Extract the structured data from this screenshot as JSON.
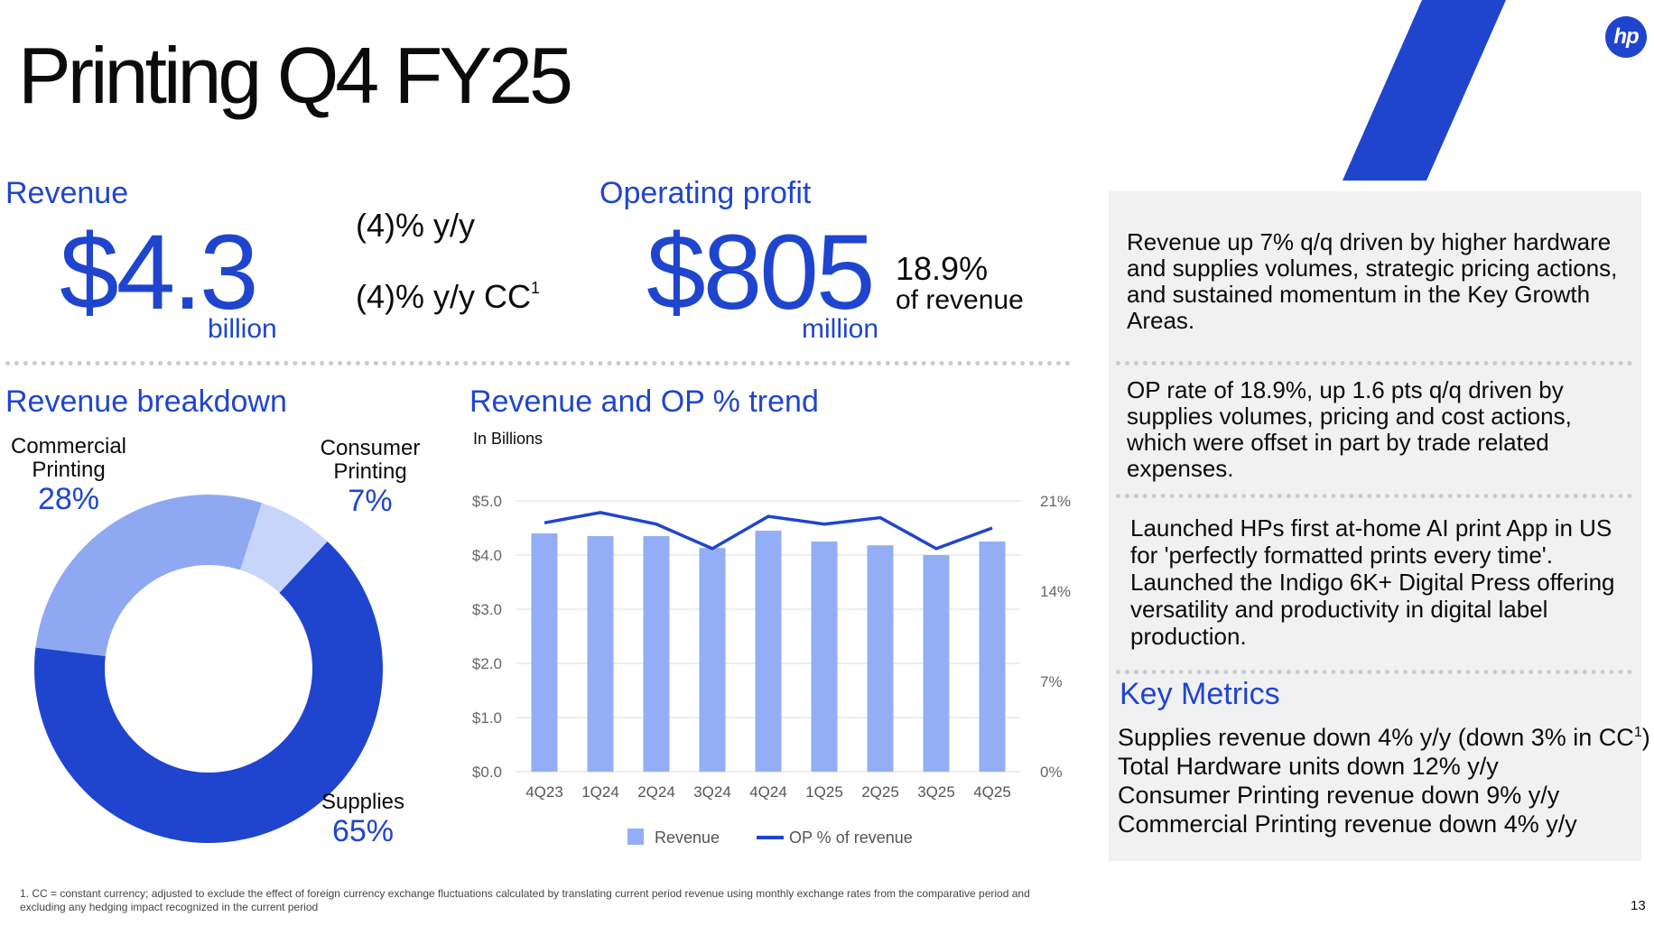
{
  "title": "Printing Q4 FY25",
  "page_number": "13",
  "brand": {
    "logo_text": "hp",
    "accent": "#1f45cf"
  },
  "revenue": {
    "label": "Revenue",
    "value": "$4.3",
    "unit": "billion",
    "yy": "(4)% y/y",
    "yy_cc": "(4)% y/y CC",
    "yy_cc_sup": "1"
  },
  "op_profit": {
    "label": "Operating profit",
    "value": "$805",
    "unit": "million",
    "pct": "18.9%",
    "pct_label": "of revenue"
  },
  "breakdown": {
    "title": "Revenue breakdown",
    "segments": [
      {
        "name": "Commercial Printing",
        "line1": "Commercial",
        "line2": "Printing",
        "pct": "28%",
        "value": 28,
        "color": "#8ea8f2"
      },
      {
        "name": "Consumer Printing",
        "line1": "Consumer",
        "line2": "Printing",
        "pct": "7%",
        "value": 7,
        "color": "#c7d5fb"
      },
      {
        "name": "Supplies",
        "line1": "Supplies",
        "line2": "",
        "pct": "65%",
        "value": 65,
        "color": "#1f45cf"
      }
    ]
  },
  "trend": {
    "title": "Revenue and OP % trend",
    "subtitle": "In Billions"
  },
  "chart_data": {
    "type": "bar",
    "title": "Revenue and OP % trend",
    "subtitle": "In Billions",
    "categories": [
      "4Q23",
      "1Q24",
      "2Q24",
      "3Q24",
      "4Q24",
      "1Q25",
      "2Q25",
      "3Q25",
      "4Q25"
    ],
    "series": [
      {
        "name": "Revenue",
        "type": "bar",
        "axis": "left",
        "color": "#93aef5",
        "values": [
          4.4,
          4.35,
          4.35,
          4.13,
          4.45,
          4.25,
          4.18,
          4.0,
          4.25
        ]
      },
      {
        "name": "OP % of revenue",
        "type": "line",
        "axis": "right",
        "color": "#1f45cf",
        "values": [
          19.3,
          20.1,
          19.2,
          17.3,
          19.8,
          19.2,
          19.7,
          17.3,
          18.9
        ]
      }
    ],
    "y_left": {
      "ticks": [
        "$0.0",
        "$1.0",
        "$2.0",
        "$3.0",
        "$4.0",
        "$5.0"
      ],
      "lim": [
        0,
        5
      ]
    },
    "y_right": {
      "ticks": [
        "0%",
        "7%",
        "14%",
        "21%"
      ],
      "lim": [
        0,
        21
      ]
    },
    "grid": true,
    "legend": "bottom"
  },
  "commentary": [
    "Revenue up 7% q/q driven by higher hardware and supplies volumes, strategic pricing actions, and sustained momentum in the Key Growth Areas.",
    "OP rate of 18.9%, up 1.6 pts q/q driven by supplies volumes, pricing and cost actions, which were offset in part by trade related expenses.",
    "Launched HPs first at-home AI print App in US for 'perfectly formatted prints every time'. Launched the Indigo 6K+ Digital Press offering versatility and productivity in digital label production."
  ],
  "key_metrics": {
    "title": "Key Metrics",
    "items": [
      {
        "text": "Supplies revenue down 4% y/y (down 3% in CC",
        "sup": "1",
        "tail": ")"
      },
      {
        "text": "Total Hardware units down 12% y/y",
        "sup": "",
        "tail": ""
      },
      {
        "text": "Consumer Printing revenue down 9% y/y",
        "sup": "",
        "tail": ""
      },
      {
        "text": "Commercial Printing revenue down 4% y/y",
        "sup": "",
        "tail": ""
      }
    ]
  },
  "footnote": "1.   CC = constant currency; adjusted to exclude the effect of foreign currency exchange fluctuations calculated by translating current period revenue using monthly exchange rates from the comparative period and excluding any hedging impact recognized in the current period"
}
